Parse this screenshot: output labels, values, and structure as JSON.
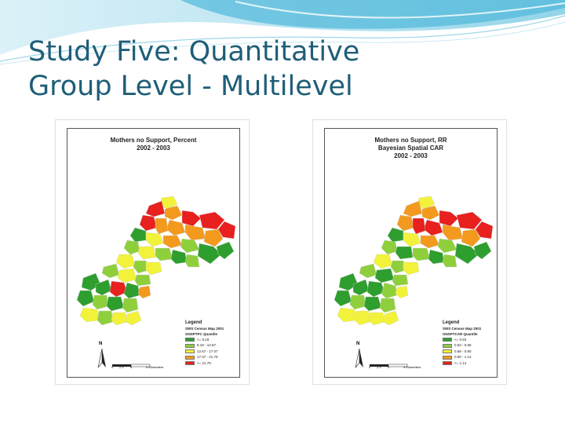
{
  "slide": {
    "title_line1": "Study Five: Quantitative",
    "title_line2": "Group Level - Multilevel"
  },
  "maps": [
    {
      "title_lines": [
        "Mothers no Support, Percent",
        "2002 - 2003"
      ],
      "legend_heading": "Legend",
      "legend_layer": "SWS Census Map 2001",
      "legend_field": "GNSPTPC  Quantile",
      "classes": [
        {
          "label": "<= 8.19",
          "color": "#2e9e2e"
        },
        {
          "label": "8.19 - 12.67",
          "color": "#8fcf3c"
        },
        {
          "label": "12.67 - 17.07",
          "color": "#f2f23a"
        },
        {
          "label": "17.07 - 21.79",
          "color": "#f39a1e"
        },
        {
          "label": ">= 21.79",
          "color": "#e8201e"
        }
      ],
      "north_label": "N",
      "scale_labels": [
        "0",
        "2.5",
        "5",
        "5 Kilometers"
      ]
    },
    {
      "title_lines": [
        "Mothers no Support, RR",
        "Bayesian Spatial CAR",
        "2002 - 2003"
      ],
      "legend_heading": "Legend",
      "legend_layer": "SWS Census Map 2001",
      "legend_field": "GNSPTCAR  Quantile",
      "classes": [
        {
          "label": "<= 0.53",
          "color": "#2e9e2e"
        },
        {
          "label": "0.53 - 0.68",
          "color": "#8fcf3c"
        },
        {
          "label": "0.68 - 0.90",
          "color": "#f2f23a"
        },
        {
          "label": "0.90 - 1.14",
          "color": "#f39a1e"
        },
        {
          "label": ">= 1.14",
          "color": "#e8201e"
        }
      ],
      "north_label": "N",
      "scale_labels": [
        "0",
        "2.5",
        "5",
        "5 Kilometers"
      ]
    }
  ]
}
